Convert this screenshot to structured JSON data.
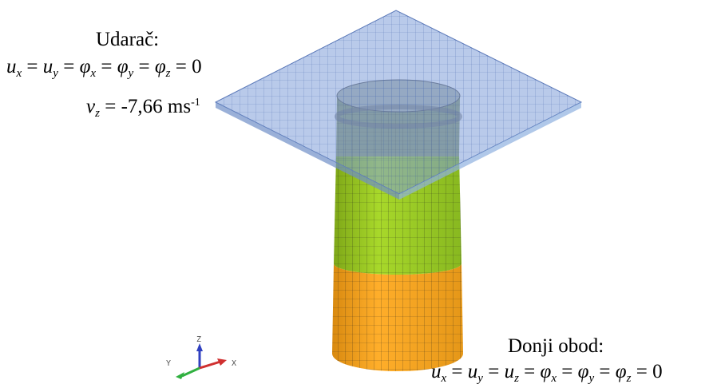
{
  "striker": {
    "title": "Udarač:",
    "constraints": {
      "symbols": [
        "u",
        "u",
        "φ",
        "φ",
        "φ"
      ],
      "subscripts": [
        "x",
        "y",
        "x",
        "y",
        "z"
      ],
      "rhs": "0"
    },
    "velocity": {
      "symbol": "v",
      "subscript": "z",
      "value": "-7,66",
      "unit": "ms",
      "unit_exponent": "-1"
    }
  },
  "bottom_rim": {
    "title": "Donji obod:",
    "constraints": {
      "symbols": [
        "u",
        "u",
        "u",
        "φ",
        "φ",
        "φ"
      ],
      "subscripts": [
        "x",
        "y",
        "z",
        "x",
        "y",
        "z"
      ],
      "rhs": "0"
    }
  },
  "triad": {
    "z": "Z",
    "y": "Y",
    "x": "X"
  },
  "colors": {
    "plate": "#7f9fd8",
    "upper_tube": "#99cc22",
    "lower_tube": "#f5a623",
    "triad_z": "#3040c0",
    "triad_x": "#d03030",
    "triad_y": "#30b040"
  }
}
